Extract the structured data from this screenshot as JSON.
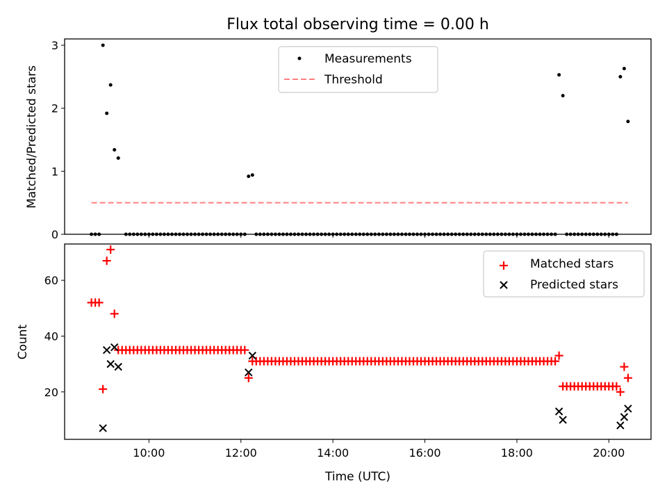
{
  "chart_data": [
    {
      "type": "scatter",
      "title": "Flux total observing time = 0.00 h",
      "xlabel": "",
      "ylabel": "Matched/Predicted stars",
      "ylim": [
        0,
        3.1
      ],
      "xlim": [
        "08:10",
        "20:55"
      ],
      "yticks": [
        "0",
        "1",
        "2",
        "3"
      ],
      "grid": false,
      "legend_position": "top-center",
      "series": [
        {
          "name": "Measurements",
          "color": "#000000",
          "marker": "dot",
          "zero_ranges": [
            [
              "08:45",
              "08:55"
            ],
            [
              "09:30",
              "12:05"
            ],
            [
              "12:20",
              "18:50"
            ],
            [
              "19:05",
              "20:10"
            ]
          ],
          "zero_step_minutes": 5,
          "points": [
            {
              "x": "09:00",
              "y": 3.0
            },
            {
              "x": "09:05",
              "y": 1.92
            },
            {
              "x": "09:10",
              "y": 2.37
            },
            {
              "x": "09:15",
              "y": 1.34
            },
            {
              "x": "09:20",
              "y": 1.21
            },
            {
              "x": "12:10",
              "y": 0.92
            },
            {
              "x": "12:15",
              "y": 0.94
            },
            {
              "x": "18:55",
              "y": 2.53
            },
            {
              "x": "19:00",
              "y": 2.2
            },
            {
              "x": "20:15",
              "y": 2.5
            },
            {
              "x": "20:20",
              "y": 2.63
            },
            {
              "x": "20:25",
              "y": 1.79
            }
          ]
        },
        {
          "name": "Threshold",
          "color": "#ff7f7f",
          "style": "dashed",
          "from": "08:45",
          "to": "20:25",
          "y": 0.5
        }
      ]
    },
    {
      "type": "scatter",
      "title": "",
      "xlabel": "Time (UTC)",
      "ylabel": "Count",
      "ylim": [
        3,
        73
      ],
      "xlim": [
        "08:10",
        "20:55"
      ],
      "yticks": [
        "20",
        "40",
        "60"
      ],
      "xticks": [
        "10:00",
        "12:00",
        "14:00",
        "16:00",
        "18:00",
        "20:00"
      ],
      "grid": false,
      "legend_position": "top-right",
      "series": [
        {
          "name": "Matched stars",
          "color": "#ff0000",
          "marker": "plus",
          "runs": [
            {
              "from": "08:45",
              "to": "08:55",
              "y": 52
            },
            {
              "from": "09:25",
              "to": "12:05",
              "y": 35
            },
            {
              "from": "12:20",
              "to": "18:50",
              "y": 31
            },
            {
              "from": "19:05",
              "to": "20:10",
              "y": 22
            }
          ],
          "points": [
            {
              "x": "09:00",
              "y": 21
            },
            {
              "x": "09:05",
              "y": 67
            },
            {
              "x": "09:10",
              "y": 71
            },
            {
              "x": "09:15",
              "y": 48
            },
            {
              "x": "09:20",
              "y": 35
            },
            {
              "x": "12:10",
              "y": 25
            },
            {
              "x": "12:15",
              "y": 31
            },
            {
              "x": "18:55",
              "y": 33
            },
            {
              "x": "19:00",
              "y": 22
            },
            {
              "x": "20:15",
              "y": 20
            },
            {
              "x": "20:20",
              "y": 29
            },
            {
              "x": "20:25",
              "y": 25
            }
          ]
        },
        {
          "name": "Predicted stars",
          "color": "#000000",
          "marker": "x",
          "points": [
            {
              "x": "09:00",
              "y": 7
            },
            {
              "x": "09:05",
              "y": 35
            },
            {
              "x": "09:10",
              "y": 30
            },
            {
              "x": "09:15",
              "y": 36
            },
            {
              "x": "09:20",
              "y": 29
            },
            {
              "x": "12:10",
              "y": 27
            },
            {
              "x": "12:15",
              "y": 33
            },
            {
              "x": "18:55",
              "y": 13
            },
            {
              "x": "19:00",
              "y": 10
            },
            {
              "x": "20:15",
              "y": 8
            },
            {
              "x": "20:20",
              "y": 11
            },
            {
              "x": "20:25",
              "y": 14
            }
          ]
        }
      ]
    }
  ]
}
